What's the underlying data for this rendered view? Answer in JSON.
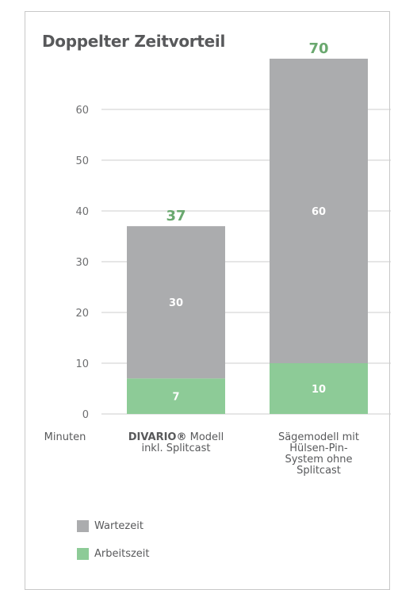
{
  "title": "Doppelter Zeitvorteil",
  "colors": {
    "wait": "#abacae",
    "work": "#8dcb97",
    "total_label": "#6aa86f",
    "grid": "#cccccc",
    "text": "#58595b"
  },
  "legend": [
    {
      "label": "Wartezeit",
      "color": "#abacae"
    },
    {
      "label": "Arbeitszeit",
      "color": "#8dcb97"
    }
  ],
  "chart_data": {
    "type": "bar",
    "stacked": true,
    "ylabel": "Minuten",
    "ylim": [
      0,
      70
    ],
    "yticks": [
      0,
      10,
      20,
      30,
      40,
      50,
      60
    ],
    "grid": true,
    "legend_position": "bottom-left",
    "categories": [
      [
        "DIVARIO® Modell",
        "inkl. Splitcast"
      ],
      [
        "Sägemodell mit",
        "Hülsen-Pin-",
        "System ohne",
        "Splitcast"
      ]
    ],
    "series": [
      {
        "name": "Arbeitszeit",
        "values": [
          7,
          10
        ]
      },
      {
        "name": "Wartezeit",
        "values": [
          30,
          60
        ]
      }
    ],
    "totals": [
      37,
      70
    ]
  }
}
